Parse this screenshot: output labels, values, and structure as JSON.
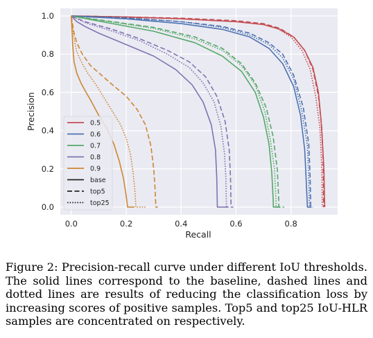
{
  "chart_data": {
    "type": "line",
    "xlabel": "Recall",
    "ylabel": "Precision",
    "xlim": [
      -0.04,
      0.97
    ],
    "ylim": [
      -0.04,
      1.04
    ],
    "x_ticks": [
      "0.0",
      "0.2",
      "0.4",
      "0.6",
      "0.8"
    ],
    "y_ticks": [
      "0.0",
      "0.2",
      "0.4",
      "0.6",
      "0.8",
      "1.0"
    ],
    "grid": true,
    "background": "#eaeaf2",
    "legend_position": "lower-left",
    "legend": {
      "thresholds": [
        {
          "label": "0.5",
          "color": "#c44e52"
        },
        {
          "label": "0.6",
          "color": "#4c72b0"
        },
        {
          "label": "0.7",
          "color": "#55a868"
        },
        {
          "label": "0.8",
          "color": "#8172b2"
        },
        {
          "label": "0.9",
          "color": "#cc8632"
        }
      ],
      "styles": [
        {
          "label": "base",
          "dash": "solid"
        },
        {
          "label": "top5",
          "dash": "dashed"
        },
        {
          "label": "top25",
          "dash": "dotted"
        }
      ]
    },
    "series": [
      {
        "threshold": "0.5",
        "style": "base",
        "color": "#c44e52",
        "points": [
          [
            0,
            1
          ],
          [
            0.2,
            0.995
          ],
          [
            0.4,
            0.985
          ],
          [
            0.6,
            0.97
          ],
          [
            0.7,
            0.955
          ],
          [
            0.76,
            0.93
          ],
          [
            0.81,
            0.89
          ],
          [
            0.85,
            0.82
          ],
          [
            0.88,
            0.73
          ],
          [
            0.9,
            0.6
          ],
          [
            0.91,
            0.45
          ],
          [
            0.915,
            0.33
          ],
          [
            0.92,
            0.2
          ],
          [
            0.922,
            0.05
          ],
          [
            0.923,
            0
          ]
        ]
      },
      {
        "threshold": "0.5",
        "style": "top5",
        "color": "#c44e52",
        "points": [
          [
            0,
            1
          ],
          [
            0.2,
            0.995
          ],
          [
            0.4,
            0.988
          ],
          [
            0.6,
            0.975
          ],
          [
            0.7,
            0.96
          ],
          [
            0.76,
            0.935
          ],
          [
            0.81,
            0.89
          ],
          [
            0.85,
            0.82
          ],
          [
            0.88,
            0.72
          ],
          [
            0.9,
            0.58
          ],
          [
            0.912,
            0.42
          ],
          [
            0.916,
            0.3
          ],
          [
            0.918,
            0.15
          ],
          [
            0.919,
            0
          ]
        ]
      },
      {
        "threshold": "0.5",
        "style": "top25",
        "color": "#c44e52",
        "points": [
          [
            0,
            1
          ],
          [
            0.2,
            0.993
          ],
          [
            0.4,
            0.985
          ],
          [
            0.6,
            0.97
          ],
          [
            0.7,
            0.955
          ],
          [
            0.75,
            0.935
          ],
          [
            0.8,
            0.89
          ],
          [
            0.84,
            0.82
          ],
          [
            0.87,
            0.72
          ],
          [
            0.89,
            0.58
          ],
          [
            0.905,
            0.42
          ],
          [
            0.91,
            0.28
          ],
          [
            0.913,
            0.15
          ],
          [
            0.914,
            0
          ]
        ]
      },
      {
        "threshold": "0.6",
        "style": "base",
        "color": "#4c72b0",
        "points": [
          [
            0,
            1
          ],
          [
            0.2,
            0.985
          ],
          [
            0.4,
            0.96
          ],
          [
            0.55,
            0.93
          ],
          [
            0.65,
            0.89
          ],
          [
            0.72,
            0.83
          ],
          [
            0.77,
            0.75
          ],
          [
            0.81,
            0.63
          ],
          [
            0.835,
            0.48
          ],
          [
            0.85,
            0.3
          ],
          [
            0.855,
            0.15
          ],
          [
            0.86,
            0
          ],
          [
            0.875,
            0
          ]
        ]
      },
      {
        "threshold": "0.6",
        "style": "top5",
        "color": "#4c72b0",
        "points": [
          [
            0,
            1
          ],
          [
            0.2,
            0.99
          ],
          [
            0.4,
            0.97
          ],
          [
            0.55,
            0.945
          ],
          [
            0.65,
            0.91
          ],
          [
            0.72,
            0.86
          ],
          [
            0.77,
            0.8
          ],
          [
            0.81,
            0.69
          ],
          [
            0.845,
            0.52
          ],
          [
            0.865,
            0.33
          ],
          [
            0.87,
            0.15
          ],
          [
            0.872,
            0
          ],
          [
            0.88,
            0
          ]
        ]
      },
      {
        "threshold": "0.6",
        "style": "top25",
        "color": "#4c72b0",
        "points": [
          [
            0,
            1
          ],
          [
            0.2,
            0.988
          ],
          [
            0.4,
            0.97
          ],
          [
            0.55,
            0.94
          ],
          [
            0.65,
            0.9
          ],
          [
            0.72,
            0.85
          ],
          [
            0.77,
            0.78
          ],
          [
            0.81,
            0.67
          ],
          [
            0.84,
            0.5
          ],
          [
            0.86,
            0.32
          ],
          [
            0.865,
            0.15
          ],
          [
            0.867,
            0
          ],
          [
            0.875,
            0
          ]
        ]
      },
      {
        "threshold": "0.7",
        "style": "base",
        "color": "#55a868",
        "points": [
          [
            0,
            1
          ],
          [
            0.15,
            0.96
          ],
          [
            0.3,
            0.92
          ],
          [
            0.45,
            0.86
          ],
          [
            0.55,
            0.79
          ],
          [
            0.62,
            0.71
          ],
          [
            0.67,
            0.6
          ],
          [
            0.7,
            0.47
          ],
          [
            0.72,
            0.33
          ],
          [
            0.73,
            0.18
          ],
          [
            0.735,
            0.05
          ],
          [
            0.736,
            0
          ],
          [
            0.76,
            0
          ]
        ]
      },
      {
        "threshold": "0.7",
        "style": "top5",
        "color": "#55a868",
        "points": [
          [
            0,
            1
          ],
          [
            0.15,
            0.97
          ],
          [
            0.3,
            0.94
          ],
          [
            0.45,
            0.89
          ],
          [
            0.55,
            0.83
          ],
          [
            0.62,
            0.75
          ],
          [
            0.67,
            0.65
          ],
          [
            0.71,
            0.52
          ],
          [
            0.735,
            0.37
          ],
          [
            0.75,
            0.2
          ],
          [
            0.755,
            0.05
          ],
          [
            0.756,
            0
          ],
          [
            0.775,
            0
          ]
        ]
      },
      {
        "threshold": "0.7",
        "style": "top25",
        "color": "#55a868",
        "points": [
          [
            0,
            1
          ],
          [
            0.15,
            0.968
          ],
          [
            0.3,
            0.935
          ],
          [
            0.45,
            0.88
          ],
          [
            0.55,
            0.82
          ],
          [
            0.62,
            0.74
          ],
          [
            0.67,
            0.64
          ],
          [
            0.705,
            0.5
          ],
          [
            0.725,
            0.35
          ],
          [
            0.74,
            0.2
          ],
          [
            0.745,
            0.05
          ],
          [
            0.746,
            0
          ],
          [
            0.765,
            0
          ]
        ]
      },
      {
        "threshold": "0.8",
        "style": "base",
        "color": "#8172b2",
        "points": [
          [
            0,
            1
          ],
          [
            0.02,
            0.97
          ],
          [
            0.05,
            0.945
          ],
          [
            0.1,
            0.91
          ],
          [
            0.2,
            0.85
          ],
          [
            0.3,
            0.79
          ],
          [
            0.38,
            0.72
          ],
          [
            0.44,
            0.64
          ],
          [
            0.48,
            0.55
          ],
          [
            0.51,
            0.43
          ],
          [
            0.525,
            0.3
          ],
          [
            0.53,
            0.15
          ],
          [
            0.532,
            0
          ],
          [
            0.57,
            0
          ]
        ]
      },
      {
        "threshold": "0.8",
        "style": "top5",
        "color": "#8172b2",
        "points": [
          [
            0,
            1
          ],
          [
            0.05,
            0.97
          ],
          [
            0.15,
            0.93
          ],
          [
            0.25,
            0.88
          ],
          [
            0.35,
            0.82
          ],
          [
            0.43,
            0.76
          ],
          [
            0.49,
            0.68
          ],
          [
            0.53,
            0.58
          ],
          [
            0.56,
            0.45
          ],
          [
            0.575,
            0.3
          ],
          [
            0.58,
            0.15
          ],
          [
            0.582,
            0
          ],
          [
            0.59,
            0
          ]
        ]
      },
      {
        "threshold": "0.8",
        "style": "top25",
        "color": "#8172b2",
        "points": [
          [
            0,
            1
          ],
          [
            0.05,
            0.965
          ],
          [
            0.15,
            0.92
          ],
          [
            0.25,
            0.87
          ],
          [
            0.35,
            0.8
          ],
          [
            0.43,
            0.73
          ],
          [
            0.48,
            0.65
          ],
          [
            0.52,
            0.55
          ],
          [
            0.545,
            0.42
          ],
          [
            0.558,
            0.28
          ],
          [
            0.563,
            0.15
          ],
          [
            0.565,
            0
          ],
          [
            0.575,
            0
          ]
        ]
      },
      {
        "threshold": "0.9",
        "style": "base",
        "color": "#cc8632",
        "points": [
          [
            0,
            1
          ],
          [
            0.005,
            0.85
          ],
          [
            0.01,
            0.76
          ],
          [
            0.02,
            0.7
          ],
          [
            0.035,
            0.65
          ],
          [
            0.05,
            0.61
          ],
          [
            0.07,
            0.56
          ],
          [
            0.1,
            0.48
          ],
          [
            0.13,
            0.41
          ],
          [
            0.155,
            0.33
          ],
          [
            0.175,
            0.24
          ],
          [
            0.19,
            0.15
          ],
          [
            0.2,
            0.06
          ],
          [
            0.205,
            0
          ],
          [
            0.23,
            0
          ]
        ]
      },
      {
        "threshold": "0.9",
        "style": "top5",
        "color": "#cc8632",
        "points": [
          [
            0,
            1
          ],
          [
            0.01,
            0.91
          ],
          [
            0.02,
            0.86
          ],
          [
            0.04,
            0.8
          ],
          [
            0.07,
            0.74
          ],
          [
            0.11,
            0.69
          ],
          [
            0.15,
            0.64
          ],
          [
            0.2,
            0.58
          ],
          [
            0.24,
            0.51
          ],
          [
            0.27,
            0.43
          ],
          [
            0.29,
            0.32
          ],
          [
            0.3,
            0.2
          ],
          [
            0.305,
            0.1
          ],
          [
            0.308,
            0
          ],
          [
            0.315,
            0
          ]
        ]
      },
      {
        "threshold": "0.9",
        "style": "top25",
        "color": "#cc8632",
        "points": [
          [
            0,
            1
          ],
          [
            0.01,
            0.88
          ],
          [
            0.02,
            0.81
          ],
          [
            0.04,
            0.75
          ],
          [
            0.06,
            0.7
          ],
          [
            0.09,
            0.64
          ],
          [
            0.12,
            0.57
          ],
          [
            0.15,
            0.5
          ],
          [
            0.18,
            0.43
          ],
          [
            0.2,
            0.36
          ],
          [
            0.215,
            0.28
          ],
          [
            0.225,
            0.18
          ],
          [
            0.232,
            0.08
          ],
          [
            0.235,
            0
          ],
          [
            0.27,
            0
          ]
        ]
      }
    ]
  },
  "caption": {
    "label": "Figure 2:",
    "text": "Precision-recall curve under different IoU thresholds. The solid lines correspond to the baseline, dashed lines and dotted lines are results of reducing the classification loss by increasing scores of positive samples. Top5 and top25 IoU-HLR samples are concentrated on respectively."
  }
}
